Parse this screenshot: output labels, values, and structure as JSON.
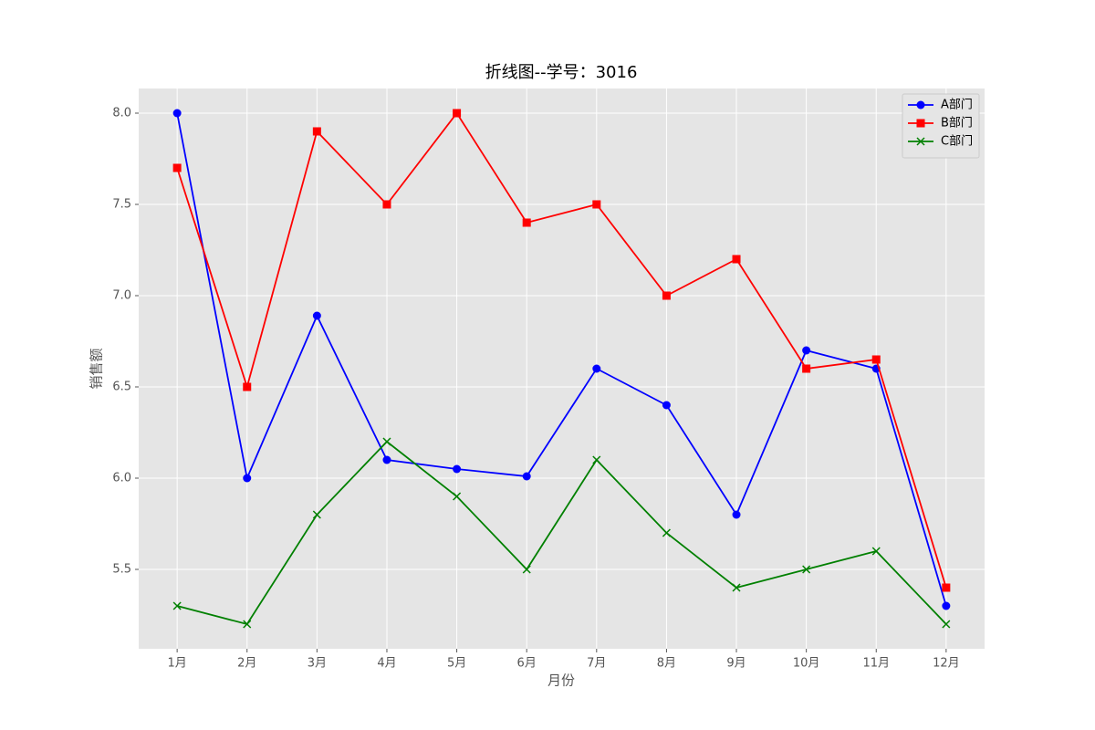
{
  "chart_data": {
    "type": "line",
    "title": "折线图--学号：3016",
    "x_label": "月份",
    "y_label": "销售额",
    "categories": [
      "1月",
      "2月",
      "3月",
      "4月",
      "5月",
      "6月",
      "7月",
      "8月",
      "9月",
      "10月",
      "11月",
      "12月"
    ],
    "series": [
      {
        "name": "A部门",
        "color": "#0000ff",
        "marker": "circle",
        "values": [
          8.0,
          6.0,
          6.89,
          6.1,
          6.05,
          6.01,
          6.6,
          6.4,
          5.8,
          6.7,
          6.6,
          5.3
        ]
      },
      {
        "name": "B部门",
        "color": "#ff0000",
        "marker": "square",
        "values": [
          7.7,
          6.5,
          7.9,
          7.5,
          8.0,
          7.4,
          7.5,
          7.0,
          7.2,
          6.6,
          6.65,
          5.4
        ]
      },
      {
        "name": "C部门",
        "color": "#008000",
        "marker": "x",
        "values": [
          5.3,
          5.2,
          5.8,
          6.2,
          5.9,
          5.5,
          6.1,
          5.7,
          5.4,
          5.5,
          5.6,
          5.2
        ]
      }
    ],
    "ylim": [
      5.065,
      8.135
    ],
    "yticks": [
      5.5,
      {
        "value": 6,
        "label": "6.0"
      },
      6.5,
      {
        "value": 7,
        "label": "7.0"
      },
      7.5,
      {
        "value": 8,
        "label": "8.0"
      }
    ],
    "grid": true,
    "legend": "upper right"
  }
}
